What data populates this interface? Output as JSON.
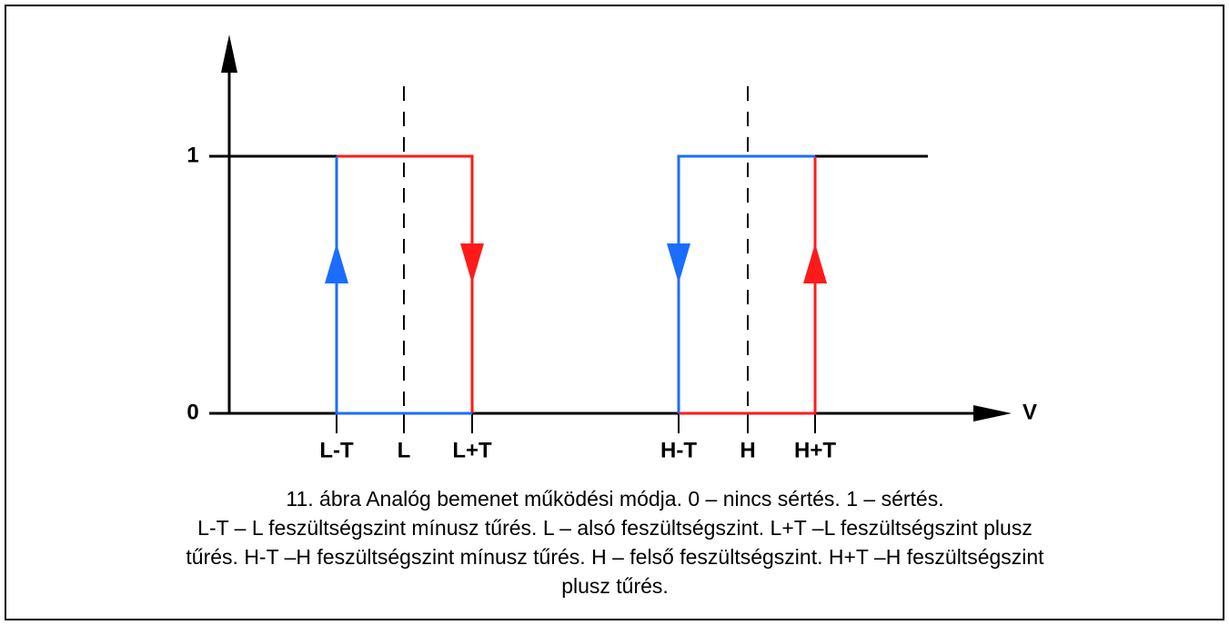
{
  "diagram": {
    "y_labels": [
      "1",
      "0"
    ],
    "x_axis_label": "V",
    "x_labels": [
      "L-T",
      "L",
      "L+T",
      "H-T",
      "H",
      "H+T"
    ],
    "caption": [
      "11. ábra Analóg bemenet működési módja. 0 – nincs sértés. 1 – sértés.",
      "L-T – L feszültségszint mínusz tűrés. L – alsó feszültségszint. L+T –L feszültségszint plusz",
      "tűrés. H-T –H feszültségszint mínusz tűrés. H – felső feszültségszint. H+T –H feszültségszint",
      "plusz tűrés."
    ]
  }
}
